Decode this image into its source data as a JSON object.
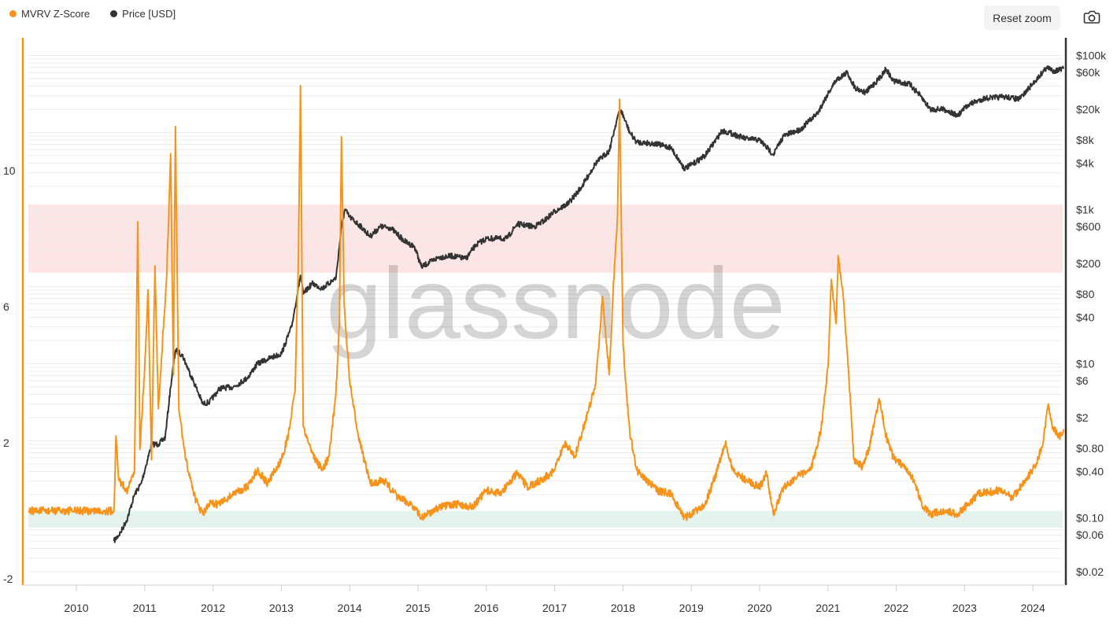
{
  "toolbar": {
    "reset_label": "Reset zoom",
    "camera_icon": "camera-icon"
  },
  "watermark": "glassnode",
  "colors": {
    "zscore": "#f7931a",
    "price": "#333333",
    "red_band": "#fde5e5",
    "green_band": "#e3f4ee"
  },
  "chart_data": {
    "type": "line",
    "legend": [
      {
        "name": "MVRV Z-Score",
        "color": "#f7931a"
      },
      {
        "name": "Price [USD]",
        "color": "#333333"
      }
    ],
    "x_ticks": [
      "2010",
      "2011",
      "2012",
      "2013",
      "2014",
      "2015",
      "2016",
      "2017",
      "2018",
      "2019",
      "2020",
      "2021",
      "2022",
      "2023",
      "2024"
    ],
    "left_axis": {
      "ticks": [
        "10",
        "6",
        "2",
        "-2"
      ],
      "range": [
        -2,
        12
      ]
    },
    "right_axis": {
      "scale": "log",
      "ticks": [
        "$100k",
        "$60k",
        "$20k",
        "$8k",
        "$4k",
        "$1k",
        "$600",
        "$200",
        "$80",
        "$40",
        "$10",
        "$6",
        "$2",
        "$0.80",
        "$0.40",
        "$0.10",
        "$0.06",
        "$0.02"
      ],
      "range": [
        0.02,
        120000
      ]
    },
    "zones": [
      {
        "name": "overvalued",
        "from": 7,
        "to": 9
      },
      {
        "name": "undervalued",
        "from": -0.5,
        "to": 0
      }
    ],
    "series": [
      {
        "name": "MVRV Z-Score",
        "axis": "left",
        "points": [
          [
            2009.3,
            0
          ],
          [
            2010.55,
            0
          ],
          [
            2010.58,
            2.2
          ],
          [
            2010.62,
            0.9
          ],
          [
            2010.75,
            0.6
          ],
          [
            2010.85,
            1.2
          ],
          [
            2010.9,
            8.5
          ],
          [
            2010.93,
            1.8
          ],
          [
            2011.0,
            4.2
          ],
          [
            2011.05,
            6.5
          ],
          [
            2011.1,
            1.5
          ],
          [
            2011.15,
            7.2
          ],
          [
            2011.2,
            3
          ],
          [
            2011.32,
            6.8
          ],
          [
            2011.35,
            8.5
          ],
          [
            2011.38,
            10.5
          ],
          [
            2011.42,
            4
          ],
          [
            2011.45,
            11.3
          ],
          [
            2011.5,
            3
          ],
          [
            2011.6,
            1.5
          ],
          [
            2011.75,
            0.3
          ],
          [
            2011.85,
            -0.1
          ],
          [
            2011.95,
            0.2
          ],
          [
            2012.1,
            0.2
          ],
          [
            2012.3,
            0.5
          ],
          [
            2012.5,
            0.7
          ],
          [
            2012.65,
            1.2
          ],
          [
            2012.8,
            0.8
          ],
          [
            2013.0,
            1.5
          ],
          [
            2013.1,
            2.2
          ],
          [
            2013.2,
            3.5
          ],
          [
            2013.25,
            7.5
          ],
          [
            2013.28,
            12.5
          ],
          [
            2013.32,
            2.5
          ],
          [
            2013.4,
            2
          ],
          [
            2013.5,
            1.5
          ],
          [
            2013.6,
            1.2
          ],
          [
            2013.7,
            1.6
          ],
          [
            2013.8,
            3.5
          ],
          [
            2013.85,
            5.5
          ],
          [
            2013.88,
            11
          ],
          [
            2013.92,
            6
          ],
          [
            2014.0,
            3.8
          ],
          [
            2014.1,
            2.5
          ],
          [
            2014.2,
            1.6
          ],
          [
            2014.3,
            0.8
          ],
          [
            2014.5,
            0.9
          ],
          [
            2014.7,
            0.4
          ],
          [
            2014.9,
            0.2
          ],
          [
            2015.05,
            -0.2
          ],
          [
            2015.3,
            0.1
          ],
          [
            2015.6,
            0.2
          ],
          [
            2015.8,
            0.1
          ],
          [
            2016.0,
            0.6
          ],
          [
            2016.2,
            0.5
          ],
          [
            2016.45,
            1.1
          ],
          [
            2016.6,
            0.7
          ],
          [
            2016.8,
            0.9
          ],
          [
            2017.0,
            1.2
          ],
          [
            2017.15,
            2
          ],
          [
            2017.3,
            1.6
          ],
          [
            2017.5,
            3
          ],
          [
            2017.6,
            3.7
          ],
          [
            2017.7,
            6.3
          ],
          [
            2017.8,
            4
          ],
          [
            2017.85,
            6.2
          ],
          [
            2017.92,
            8.7
          ],
          [
            2017.95,
            12.1
          ],
          [
            2018.0,
            5
          ],
          [
            2018.05,
            3.5
          ],
          [
            2018.1,
            2.3
          ],
          [
            2018.2,
            1.2
          ],
          [
            2018.35,
            0.9
          ],
          [
            2018.5,
            0.6
          ],
          [
            2018.7,
            0.5
          ],
          [
            2018.9,
            -0.2
          ],
          [
            2019.0,
            -0.1
          ],
          [
            2019.2,
            0.2
          ],
          [
            2019.35,
            1
          ],
          [
            2019.5,
            2
          ],
          [
            2019.6,
            1.2
          ],
          [
            2019.8,
            0.9
          ],
          [
            2020.0,
            0.7
          ],
          [
            2020.1,
            1.1
          ],
          [
            2020.2,
            -0.1
          ],
          [
            2020.35,
            0.7
          ],
          [
            2020.55,
            1
          ],
          [
            2020.75,
            1.2
          ],
          [
            2020.9,
            2.4
          ],
          [
            2021.0,
            4.2
          ],
          [
            2021.05,
            6.8
          ],
          [
            2021.12,
            5.5
          ],
          [
            2021.15,
            7.5
          ],
          [
            2021.22,
            6.4
          ],
          [
            2021.3,
            4.2
          ],
          [
            2021.38,
            1.5
          ],
          [
            2021.5,
            1.3
          ],
          [
            2021.6,
            1.8
          ],
          [
            2021.75,
            3.3
          ],
          [
            2021.85,
            2.2
          ],
          [
            2021.95,
            1.6
          ],
          [
            2022.1,
            1.3
          ],
          [
            2022.25,
            0.9
          ],
          [
            2022.4,
            0.1
          ],
          [
            2022.5,
            -0.1
          ],
          [
            2022.7,
            0
          ],
          [
            2022.9,
            -0.1
          ],
          [
            2023.0,
            0.1
          ],
          [
            2023.2,
            0.5
          ],
          [
            2023.5,
            0.6
          ],
          [
            2023.7,
            0.4
          ],
          [
            2023.9,
            0.9
          ],
          [
            2024.05,
            1.4
          ],
          [
            2024.15,
            2
          ],
          [
            2024.22,
            3.1
          ],
          [
            2024.3,
            2.4
          ],
          [
            2024.4,
            2.2
          ],
          [
            2024.45,
            2.4
          ]
        ]
      },
      {
        "name": "Price [USD]",
        "axis": "right",
        "points": [
          [
            2010.55,
            0.05
          ],
          [
            2010.65,
            0.065
          ],
          [
            2010.75,
            0.1
          ],
          [
            2010.85,
            0.2
          ],
          [
            2010.95,
            0.28
          ],
          [
            2011.1,
            0.9
          ],
          [
            2011.2,
            0.9
          ],
          [
            2011.3,
            1.1
          ],
          [
            2011.38,
            5
          ],
          [
            2011.45,
            15
          ],
          [
            2011.55,
            13
          ],
          [
            2011.65,
            8
          ],
          [
            2011.75,
            5
          ],
          [
            2011.85,
            3
          ],
          [
            2011.95,
            3.2
          ],
          [
            2012.1,
            4.8
          ],
          [
            2012.3,
            5
          ],
          [
            2012.5,
            6.5
          ],
          [
            2012.65,
            10
          ],
          [
            2012.8,
            11.5
          ],
          [
            2013.0,
            13.5
          ],
          [
            2013.15,
            30
          ],
          [
            2013.28,
            140
          ],
          [
            2013.32,
            80
          ],
          [
            2013.45,
            110
          ],
          [
            2013.6,
            95
          ],
          [
            2013.8,
            130
          ],
          [
            2013.88,
            600
          ],
          [
            2013.93,
            1000
          ],
          [
            2014.0,
            800
          ],
          [
            2014.15,
            620
          ],
          [
            2014.3,
            450
          ],
          [
            2014.45,
            600
          ],
          [
            2014.6,
            580
          ],
          [
            2014.8,
            390
          ],
          [
            2014.95,
            330
          ],
          [
            2015.05,
            180
          ],
          [
            2015.3,
            240
          ],
          [
            2015.5,
            250
          ],
          [
            2015.7,
            230
          ],
          [
            2015.85,
            350
          ],
          [
            2016.0,
            420
          ],
          [
            2016.3,
            420
          ],
          [
            2016.45,
            650
          ],
          [
            2016.7,
            600
          ],
          [
            2016.85,
            720
          ],
          [
            2017.0,
            950
          ],
          [
            2017.2,
            1200
          ],
          [
            2017.4,
            2000
          ],
          [
            2017.6,
            4000
          ],
          [
            2017.8,
            5800
          ],
          [
            2017.92,
            16000
          ],
          [
            2017.97,
            19500
          ],
          [
            2018.1,
            10000
          ],
          [
            2018.2,
            7500
          ],
          [
            2018.45,
            7200
          ],
          [
            2018.7,
            6400
          ],
          [
            2018.9,
            3400
          ],
          [
            2019.0,
            3800
          ],
          [
            2019.2,
            5000
          ],
          [
            2019.45,
            10500
          ],
          [
            2019.55,
            10000
          ],
          [
            2019.8,
            8300
          ],
          [
            2020.0,
            8000
          ],
          [
            2020.2,
            5200
          ],
          [
            2020.35,
            9000
          ],
          [
            2020.6,
            11000
          ],
          [
            2020.85,
            18000
          ],
          [
            2021.0,
            32000
          ],
          [
            2021.12,
            48000
          ],
          [
            2021.28,
            60000
          ],
          [
            2021.4,
            38000
          ],
          [
            2021.55,
            33000
          ],
          [
            2021.75,
            50000
          ],
          [
            2021.85,
            67000
          ],
          [
            2021.95,
            47000
          ],
          [
            2022.2,
            42000
          ],
          [
            2022.35,
            30000
          ],
          [
            2022.5,
            20000
          ],
          [
            2022.7,
            20000
          ],
          [
            2022.9,
            16500
          ],
          [
            2023.05,
            23000
          ],
          [
            2023.3,
            28000
          ],
          [
            2023.6,
            29000
          ],
          [
            2023.8,
            27000
          ],
          [
            2024.0,
            43000
          ],
          [
            2024.2,
            70000
          ],
          [
            2024.3,
            63000
          ],
          [
            2024.45,
            67000
          ]
        ]
      }
    ]
  }
}
